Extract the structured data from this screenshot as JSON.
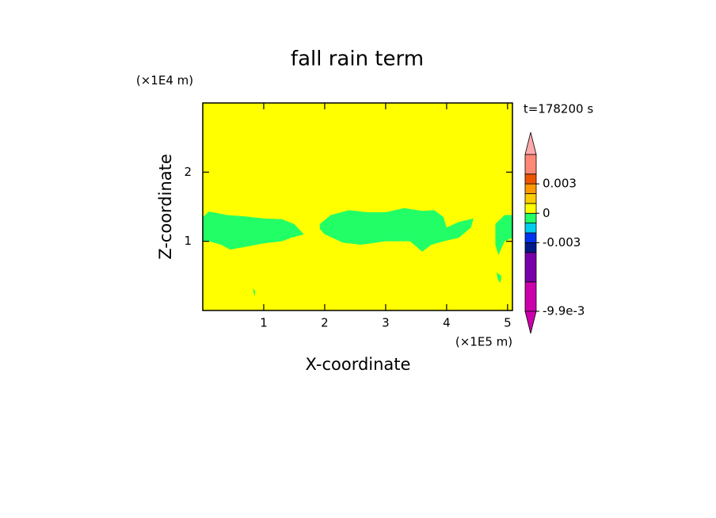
{
  "chart_data": {
    "type": "contour",
    "title": "fall rain term",
    "x_label": "X-coordinate",
    "y_label": "Z-coordinate",
    "x_unit": "(×1E5 m)",
    "y_unit": "(×1E4 m)",
    "annotation": "t=178200 s",
    "xlim": [
      0,
      5.08
    ],
    "ylim": [
      0,
      3
    ],
    "xticks": [
      1,
      2,
      3,
      4,
      5
    ],
    "yticks": [
      1,
      2
    ],
    "background_color": "#ffff00",
    "regions": [
      {
        "color": "#22ff66",
        "x": [
          0,
          0.1,
          0.4,
          0.7,
          1.0,
          1.3,
          1.5,
          1.66,
          1.45,
          1.3,
          1.0,
          0.7,
          0.45,
          0.3,
          0.1,
          0
        ],
        "z": [
          1.35,
          1.43,
          1.38,
          1.36,
          1.33,
          1.32,
          1.25,
          1.1,
          1.05,
          1.0,
          0.97,
          0.92,
          0.88,
          0.95,
          1.0,
          1.0
        ]
      },
      {
        "color": "#22ff66",
        "x": [
          1.92,
          2.1,
          2.4,
          2.7,
          3.0,
          3.3,
          3.6,
          3.8,
          3.95,
          4.0,
          4.2,
          4.44,
          4.4,
          4.2,
          3.95,
          3.75,
          3.6,
          3.4,
          3.0,
          2.6,
          2.3,
          2.0,
          1.92
        ],
        "z": [
          1.25,
          1.38,
          1.45,
          1.42,
          1.42,
          1.48,
          1.44,
          1.45,
          1.35,
          1.2,
          1.28,
          1.33,
          1.2,
          1.05,
          1.0,
          0.95,
          0.85,
          1.0,
          1.0,
          0.95,
          0.98,
          1.1,
          1.18
        ]
      },
      {
        "color": "#22ff66",
        "x": [
          4.8,
          4.95,
          5.08,
          5.08,
          4.95,
          4.85,
          4.8
        ],
        "z": [
          1.25,
          1.38,
          1.38,
          1.05,
          1.0,
          0.8,
          0.95
        ]
      },
      {
        "color": "#22ff66",
        "x": [
          4.82,
          4.9,
          4.88,
          4.84
        ],
        "z": [
          0.55,
          0.5,
          0.4,
          0.45
        ]
      },
      {
        "color": "#22ff66",
        "x": [
          0.82,
          0.86,
          0.85
        ],
        "z": [
          0.32,
          0.28,
          0.2
        ]
      }
    ],
    "colorbar": {
      "levels": [
        -0.0099,
        -0.006,
        -0.004,
        -0.003,
        -0.002,
        -0.001,
        0,
        0.001,
        0.002,
        0.003,
        0.004,
        0.006
      ],
      "colors": [
        "#cc00aa",
        "#7700aa",
        "#001a88",
        "#0033ee",
        "#00ccee",
        "#22ff66",
        "#ffff00",
        "#ffcc00",
        "#ff9900",
        "#ee5500",
        "#ff8877"
      ],
      "under_color": "#cc00aa",
      "over_color": "#ffaaaa",
      "ticks": [
        {
          "value": -0.0099,
          "label": "-9.9e-3"
        },
        -0.003,
        0,
        0.003
      ]
    }
  }
}
